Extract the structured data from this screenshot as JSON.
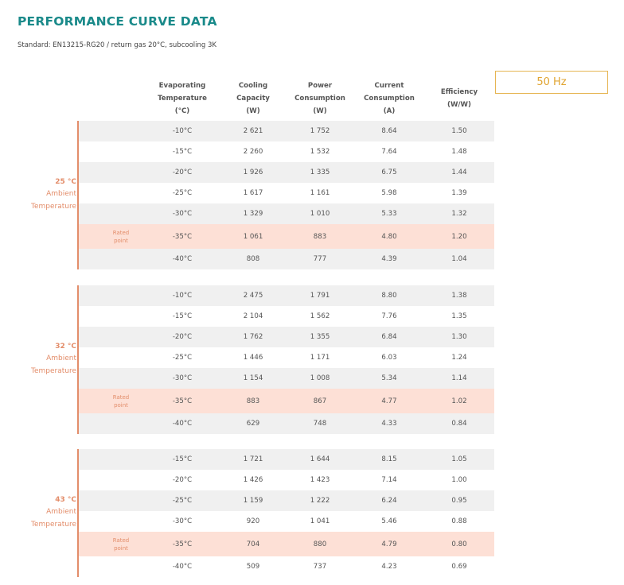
{
  "title": "PERFORMANCE CURVE DATA",
  "subtitle": "Standard: EN13215-RG20 / return gas 20°C, subcooling 3K",
  "frequency": "50 Hz",
  "rated_label": [
    "Rated",
    "point"
  ],
  "headers": [
    [
      "Evaporating",
      "Temperature",
      "(°C)"
    ],
    [
      "Cooling",
      "Capacity",
      "(W)"
    ],
    [
      "Power",
      "Consumption",
      "(W)"
    ],
    [
      "Current",
      "Consumption",
      "(A)"
    ],
    [
      "Efficiency",
      "(W/W)"
    ]
  ],
  "groups": [
    {
      "label": [
        "25 °C",
        "Ambient",
        "Temperature"
      ],
      "rows": [
        {
          "evap": "-10°C",
          "cap": "2 621",
          "power": "1 752",
          "current": "8.64",
          "eff": "1.50",
          "rated": false
        },
        {
          "evap": "-15°C",
          "cap": "2 260",
          "power": "1 532",
          "current": "7.64",
          "eff": "1.48",
          "rated": false
        },
        {
          "evap": "-20°C",
          "cap": "1 926",
          "power": "1 335",
          "current": "6.75",
          "eff": "1.44",
          "rated": false
        },
        {
          "evap": "-25°C",
          "cap": "1 617",
          "power": "1 161",
          "current": "5.98",
          "eff": "1.39",
          "rated": false
        },
        {
          "evap": "-30°C",
          "cap": "1 329",
          "power": "1 010",
          "current": "5.33",
          "eff": "1.32",
          "rated": false
        },
        {
          "evap": "-35°C",
          "cap": "1 061",
          "power": "883",
          "current": "4.80",
          "eff": "1.20",
          "rated": true
        },
        {
          "evap": "-40°C",
          "cap": "808",
          "power": "777",
          "current": "4.39",
          "eff": "1.04",
          "rated": false
        }
      ]
    },
    {
      "label": [
        "32 °C",
        "Ambient",
        "Temperature"
      ],
      "rows": [
        {
          "evap": "-10°C",
          "cap": "2 475",
          "power": "1 791",
          "current": "8.80",
          "eff": "1.38",
          "rated": false
        },
        {
          "evap": "-15°C",
          "cap": "2 104",
          "power": "1 562",
          "current": "7.76",
          "eff": "1.35",
          "rated": false
        },
        {
          "evap": "-20°C",
          "cap": "1 762",
          "power": "1 355",
          "current": "6.84",
          "eff": "1.30",
          "rated": false
        },
        {
          "evap": "-25°C",
          "cap": "1 446",
          "power": "1 171",
          "current": "6.03",
          "eff": "1.24",
          "rated": false
        },
        {
          "evap": "-30°C",
          "cap": "1 154",
          "power": "1 008",
          "current": "5.34",
          "eff": "1.14",
          "rated": false
        },
        {
          "evap": "-35°C",
          "cap": "883",
          "power": "867",
          "current": "4.77",
          "eff": "1.02",
          "rated": true
        },
        {
          "evap": "-40°C",
          "cap": "629",
          "power": "748",
          "current": "4.33",
          "eff": "0.84",
          "rated": false
        }
      ]
    },
    {
      "label": [
        "43 °C",
        "Ambient",
        "Temperature"
      ],
      "rows": [
        {
          "evap": "-15°C",
          "cap": "1 721",
          "power": "1 644",
          "current": "8.15",
          "eff": "1.05",
          "rated": false
        },
        {
          "evap": "-20°C",
          "cap": "1 426",
          "power": "1 423",
          "current": "7.14",
          "eff": "1.00",
          "rated": false
        },
        {
          "evap": "-25°C",
          "cap": "1 159",
          "power": "1 222",
          "current": "6.24",
          "eff": "0.95",
          "rated": false
        },
        {
          "evap": "-30°C",
          "cap": "920",
          "power": "1 041",
          "current": "5.46",
          "eff": "0.88",
          "rated": false
        },
        {
          "evap": "-35°C",
          "cap": "704",
          "power": "880",
          "current": "4.79",
          "eff": "0.80",
          "rated": true
        },
        {
          "evap": "-40°C",
          "cap": "509",
          "power": "737",
          "current": "4.23",
          "eff": "0.69",
          "rated": false
        }
      ]
    }
  ]
}
